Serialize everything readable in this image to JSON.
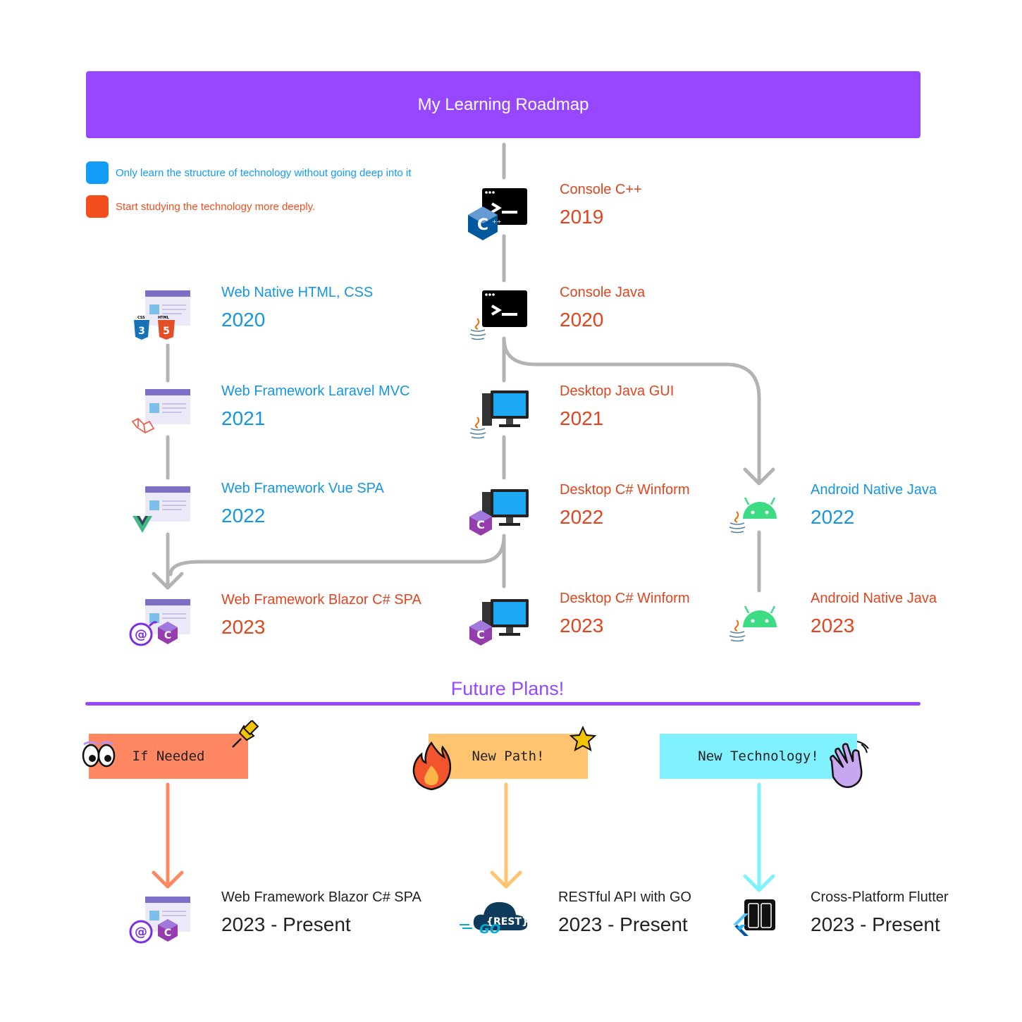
{
  "header": {
    "title": "My Learning Roadmap"
  },
  "legend": [
    {
      "color": "#129BF7",
      "text": "Only learn the structure of technology without going deep into it"
    },
    {
      "color": "#F24E1E",
      "text": "Start studying the technology more deeply."
    }
  ],
  "colors": {
    "accent": "#9747FF",
    "light": "#1596E0",
    "deep": "#E0451F",
    "connector": "#B3B3B3"
  },
  "web": [
    {
      "title": "Web Native HTML, CSS",
      "year": "2020",
      "level": "light",
      "icon": "web-page-html-css-icon"
    },
    {
      "title": "Web Framework Laravel MVC",
      "year": "2021",
      "level": "light",
      "icon": "web-page-laravel-icon"
    },
    {
      "title": "Web Framework Vue SPA",
      "year": "2022",
      "level": "light",
      "icon": "web-page-vue-icon"
    },
    {
      "title": "Web Framework Blazor C# SPA",
      "year": "2023",
      "level": "deep",
      "icon": "web-page-blazor-icon"
    }
  ],
  "desktop": [
    {
      "title": "Console C++",
      "year": "2019",
      "level": "deep",
      "icon": "terminal-cpp-icon"
    },
    {
      "title": "Console Java",
      "year": "2020",
      "level": "deep",
      "icon": "terminal-java-icon"
    },
    {
      "title": "Desktop Java GUI",
      "year": "2021",
      "level": "deep",
      "icon": "desktop-java-icon"
    },
    {
      "title": "Desktop C# Winform",
      "year": "2022",
      "level": "deep",
      "icon": "desktop-csharp-icon"
    },
    {
      "title": "Desktop C# Winform",
      "year": "2023",
      "level": "deep",
      "icon": "desktop-csharp-icon"
    }
  ],
  "android": [
    {
      "title": "Android Native Java",
      "year": "2022",
      "level": "light",
      "icon": "android-java-icon"
    },
    {
      "title": "Android Native Java",
      "year": "2023",
      "level": "deep",
      "icon": "android-java-icon"
    }
  ],
  "future": {
    "title": "Future Plans!",
    "tags": [
      {
        "label": "If Needed",
        "color": "#FF8761",
        "icon": "eyes-icon"
      },
      {
        "label": "New Path!",
        "color": "#FFC470",
        "icon": "fire-icon"
      },
      {
        "label": "New Technology!",
        "color": "#80F2FF",
        "icon": "waving-hand-icon"
      }
    ],
    "items": [
      {
        "title": "Web Framework Blazor C# SPA",
        "period": "2023 - Present",
        "icon": "web-page-blazor-icon"
      },
      {
        "title": "RESTful API with GO",
        "period": "2023 - Present",
        "icon": "go-rest-cloud-icon"
      },
      {
        "title": "Cross-Platform Flutter",
        "period": "2023 - Present",
        "icon": "flutter-phone-icon"
      }
    ]
  }
}
